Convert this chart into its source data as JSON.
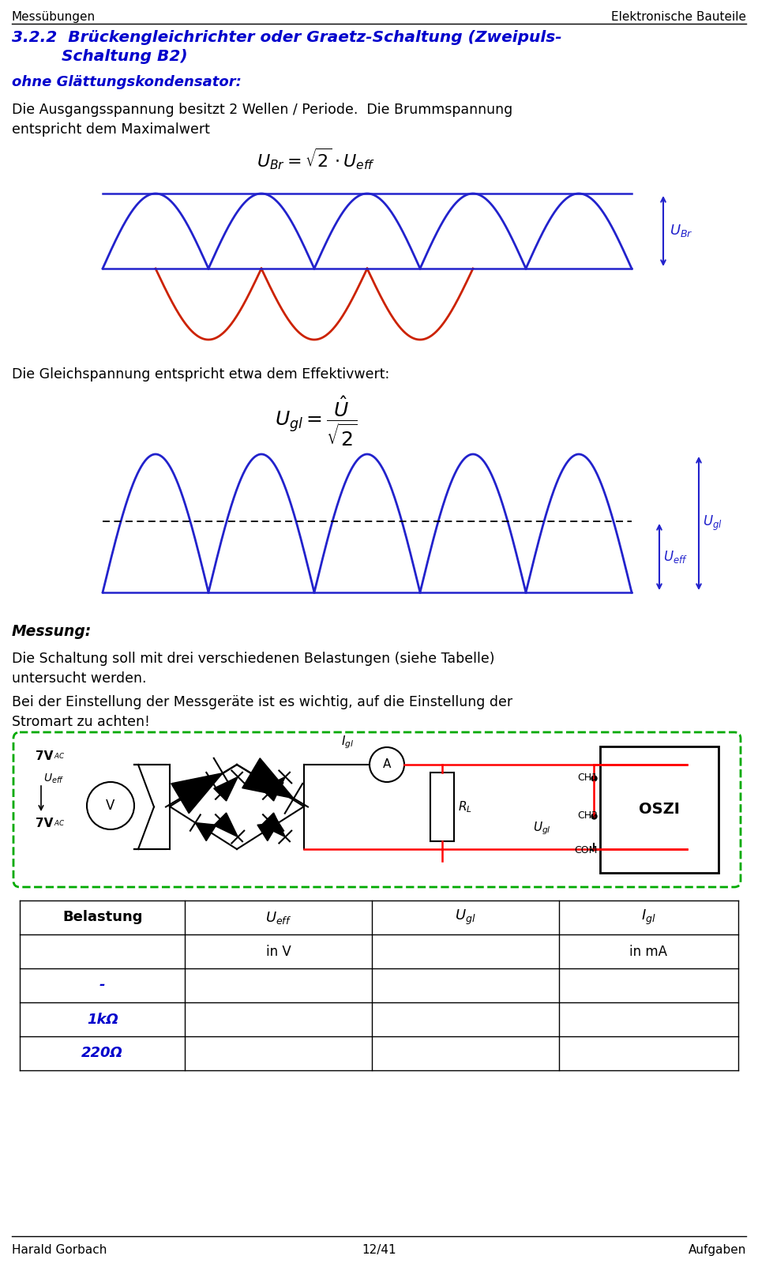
{
  "header_left": "Messübungen",
  "header_right": "Elektronische Bauteile",
  "title_line1": "3.2.2  Brückengleichrichter oder Graetz-Schaltung (Zweipuls-",
  "title_line2": "         Schaltung B2)",
  "subtitle1": "ohne Glättungskondensator:",
  "text1a": "Die Ausgangsspannung besitzt 2 Wellen / Periode.  Die Brummspannung",
  "text1b": "entspricht dem Maximalwert",
  "formula1": "$U_{Br} = \\sqrt{2} \\cdot U_{eff}$",
  "label_Ubr": "$U_{Br}$",
  "text3": "Die Gleichspannung entspricht etwa dem Effektivwert:",
  "formula2": "$U_{gl} = \\dfrac{\\hat{U}}{\\sqrt{2}}$",
  "label_Ueff": "$U_{eff}$",
  "label_Ugl": "$U_{gl}$",
  "section_messung": "Messung:",
  "text4": "Die Schaltung soll mit drei verschiedenen Belastungen (siehe Tabelle)",
  "text5": "untersucht werden.",
  "text6": "Bei der Einstellung der Messgeräte ist es wichtig, auf die Einstellung der",
  "text7": "Stromart zu achten!",
  "footer_left": "Harald Gorbach",
  "footer_center": "12/41",
  "footer_right": "Aufgaben",
  "blue_dark": "#0000BB",
  "title_blue": "#0000CC",
  "wave_blue": "#2222CC",
  "wave_red": "#CC2200",
  "green_dashed": "#00AA00",
  "bg_color": "#FFFFFF"
}
